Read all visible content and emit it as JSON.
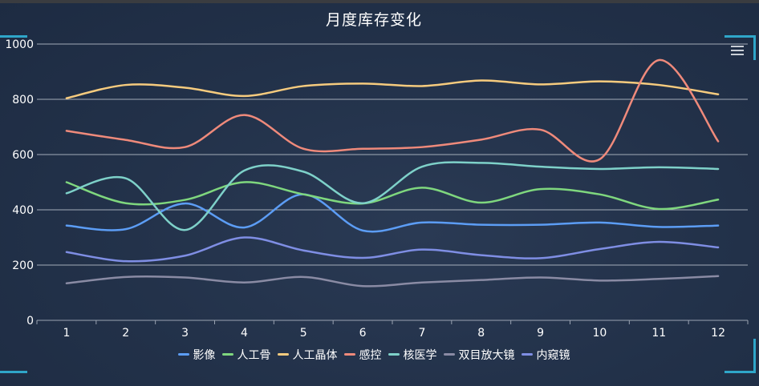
{
  "page": {
    "title": "月度库存变化"
  },
  "chart_data": {
    "type": "line",
    "title": "月度库存变化",
    "x": [
      "1",
      "2",
      "3",
      "4",
      "5",
      "6",
      "7",
      "8",
      "9",
      "10",
      "11",
      "12"
    ],
    "ylim": [
      0,
      1000
    ],
    "yticks": [
      "0",
      "200",
      "400",
      "600",
      "800",
      "1000"
    ],
    "grid": true,
    "legend_position": "bottom",
    "series": [
      {
        "name": "影像",
        "color": "#5c9df5",
        "values": [
          343,
          330,
          423,
          336,
          456,
          325,
          354,
          346,
          346,
          354,
          338,
          343
        ]
      },
      {
        "name": "人工骨",
        "color": "#7fd77e",
        "values": [
          500,
          424,
          436,
          500,
          456,
          423,
          480,
          426,
          475,
          456,
          403,
          437
        ]
      },
      {
        "name": "人工晶体",
        "color": "#f6cb7e",
        "values": [
          804,
          852,
          842,
          812,
          848,
          857,
          848,
          868,
          854,
          865,
          852,
          818
        ]
      },
      {
        "name": "感控",
        "color": "#ef8a7b",
        "values": [
          686,
          653,
          627,
          743,
          621,
          621,
          627,
          654,
          690,
          583,
          942,
          648
        ]
      },
      {
        "name": "核医学",
        "color": "#7ed1c9",
        "values": [
          460,
          514,
          327,
          542,
          538,
          424,
          556,
          570,
          556,
          548,
          554,
          548
        ]
      },
      {
        "name": "双目放大镜",
        "color": "#8a8ba4",
        "values": [
          134,
          157,
          155,
          137,
          157,
          124,
          137,
          146,
          155,
          144,
          150,
          160
        ]
      },
      {
        "name": "内窥镜",
        "color": "#7f8ee4",
        "values": [
          247,
          214,
          234,
          300,
          253,
          226,
          256,
          236,
          225,
          258,
          284,
          264
        ]
      }
    ]
  }
}
